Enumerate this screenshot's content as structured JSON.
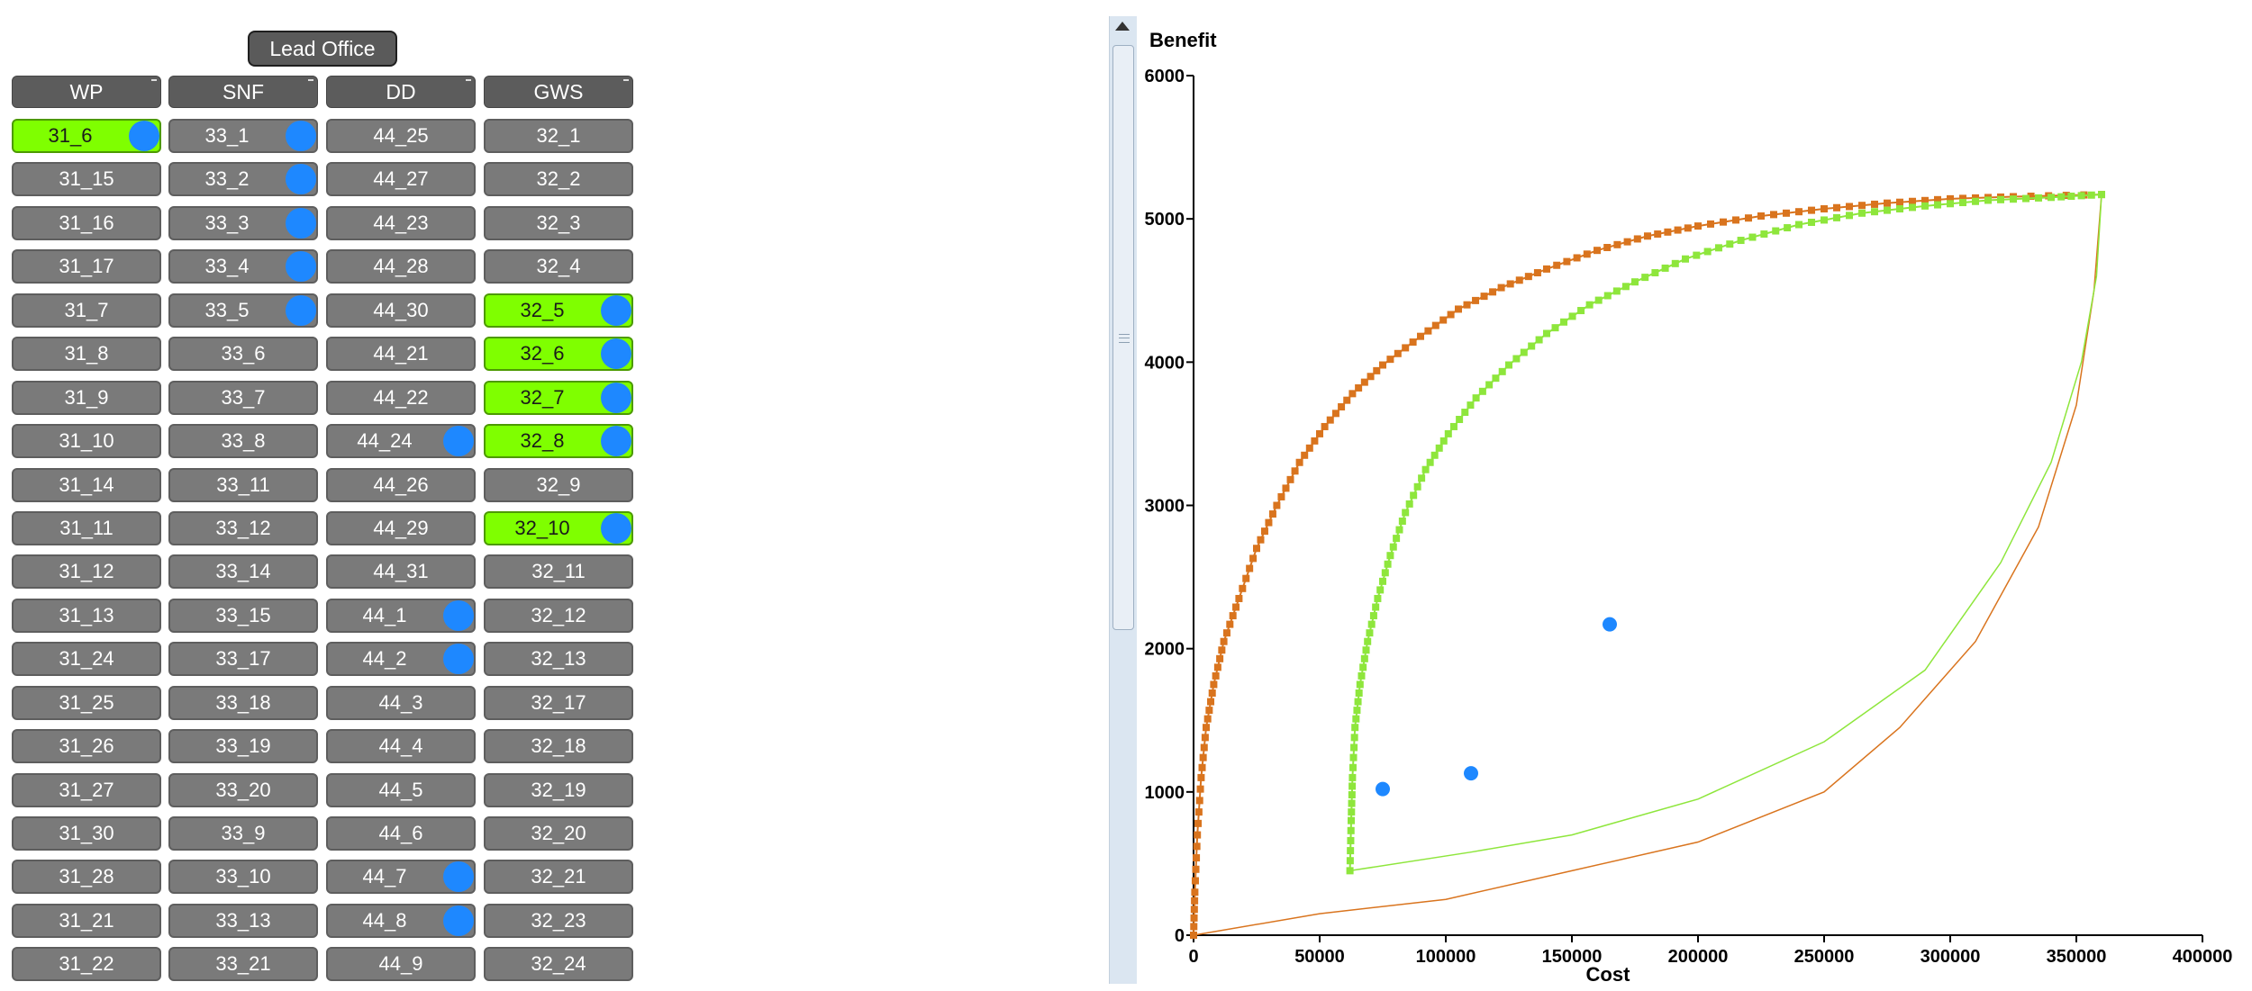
{
  "lead_office": {
    "label": "Lead Office"
  },
  "grid": {
    "columns": [
      {
        "header": "WP",
        "cells": [
          {
            "label": "31_6",
            "active": true,
            "marker": true
          },
          {
            "label": "31_15",
            "active": false,
            "marker": false
          },
          {
            "label": "31_16",
            "active": false,
            "marker": false
          },
          {
            "label": "31_17",
            "active": false,
            "marker": false
          },
          {
            "label": "31_7",
            "active": false,
            "marker": false
          },
          {
            "label": "31_8",
            "active": false,
            "marker": false
          },
          {
            "label": "31_9",
            "active": false,
            "marker": false
          },
          {
            "label": "31_10",
            "active": false,
            "marker": false
          },
          {
            "label": "31_14",
            "active": false,
            "marker": false
          },
          {
            "label": "31_11",
            "active": false,
            "marker": false
          },
          {
            "label": "31_12",
            "active": false,
            "marker": false
          },
          {
            "label": "31_13",
            "active": false,
            "marker": false
          },
          {
            "label": "31_24",
            "active": false,
            "marker": false
          },
          {
            "label": "31_25",
            "active": false,
            "marker": false
          },
          {
            "label": "31_26",
            "active": false,
            "marker": false
          },
          {
            "label": "31_27",
            "active": false,
            "marker": false
          },
          {
            "label": "31_30",
            "active": false,
            "marker": false
          },
          {
            "label": "31_28",
            "active": false,
            "marker": false
          },
          {
            "label": "31_21",
            "active": false,
            "marker": false
          },
          {
            "label": "31_22",
            "active": false,
            "marker": false
          }
        ]
      },
      {
        "header": "SNF",
        "cells": [
          {
            "label": "33_1",
            "active": false,
            "marker": true
          },
          {
            "label": "33_2",
            "active": false,
            "marker": true
          },
          {
            "label": "33_3",
            "active": false,
            "marker": true
          },
          {
            "label": "33_4",
            "active": false,
            "marker": true
          },
          {
            "label": "33_5",
            "active": false,
            "marker": true
          },
          {
            "label": "33_6",
            "active": false,
            "marker": false
          },
          {
            "label": "33_7",
            "active": false,
            "marker": false
          },
          {
            "label": "33_8",
            "active": false,
            "marker": false
          },
          {
            "label": "33_11",
            "active": false,
            "marker": false
          },
          {
            "label": "33_12",
            "active": false,
            "marker": false
          },
          {
            "label": "33_14",
            "active": false,
            "marker": false
          },
          {
            "label": "33_15",
            "active": false,
            "marker": false
          },
          {
            "label": "33_17",
            "active": false,
            "marker": false
          },
          {
            "label": "33_18",
            "active": false,
            "marker": false
          },
          {
            "label": "33_19",
            "active": false,
            "marker": false
          },
          {
            "label": "33_20",
            "active": false,
            "marker": false
          },
          {
            "label": "33_9",
            "active": false,
            "marker": false
          },
          {
            "label": "33_10",
            "active": false,
            "marker": false
          },
          {
            "label": "33_13",
            "active": false,
            "marker": false
          },
          {
            "label": "33_21",
            "active": false,
            "marker": false
          }
        ]
      },
      {
        "header": "DD",
        "cells": [
          {
            "label": "44_25",
            "active": false,
            "marker": false
          },
          {
            "label": "44_27",
            "active": false,
            "marker": false
          },
          {
            "label": "44_23",
            "active": false,
            "marker": false
          },
          {
            "label": "44_28",
            "active": false,
            "marker": false
          },
          {
            "label": "44_30",
            "active": false,
            "marker": false
          },
          {
            "label": "44_21",
            "active": false,
            "marker": false
          },
          {
            "label": "44_22",
            "active": false,
            "marker": false
          },
          {
            "label": "44_24",
            "active": false,
            "marker": true
          },
          {
            "label": "44_26",
            "active": false,
            "marker": false
          },
          {
            "label": "44_29",
            "active": false,
            "marker": false
          },
          {
            "label": "44_31",
            "active": false,
            "marker": false
          },
          {
            "label": "44_1",
            "active": false,
            "marker": true
          },
          {
            "label": "44_2",
            "active": false,
            "marker": true
          },
          {
            "label": "44_3",
            "active": false,
            "marker": false
          },
          {
            "label": "44_4",
            "active": false,
            "marker": false
          },
          {
            "label": "44_5",
            "active": false,
            "marker": false
          },
          {
            "label": "44_6",
            "active": false,
            "marker": false
          },
          {
            "label": "44_7",
            "active": false,
            "marker": true
          },
          {
            "label": "44_8",
            "active": false,
            "marker": true
          },
          {
            "label": "44_9",
            "active": false,
            "marker": false
          }
        ]
      },
      {
        "header": "GWS",
        "cells": [
          {
            "label": "32_1",
            "active": false,
            "marker": false
          },
          {
            "label": "32_2",
            "active": false,
            "marker": false
          },
          {
            "label": "32_3",
            "active": false,
            "marker": false
          },
          {
            "label": "32_4",
            "active": false,
            "marker": false
          },
          {
            "label": "32_5",
            "active": true,
            "marker": true
          },
          {
            "label": "32_6",
            "active": true,
            "marker": true
          },
          {
            "label": "32_7",
            "active": true,
            "marker": true
          },
          {
            "label": "32_8",
            "active": true,
            "marker": true
          },
          {
            "label": "32_9",
            "active": false,
            "marker": false
          },
          {
            "label": "32_10",
            "active": true,
            "marker": true
          },
          {
            "label": "32_11",
            "active": false,
            "marker": false
          },
          {
            "label": "32_12",
            "active": false,
            "marker": false
          },
          {
            "label": "32_13",
            "active": false,
            "marker": false
          },
          {
            "label": "32_17",
            "active": false,
            "marker": false
          },
          {
            "label": "32_18",
            "active": false,
            "marker": false
          },
          {
            "label": "32_19",
            "active": false,
            "marker": false
          },
          {
            "label": "32_20",
            "active": false,
            "marker": false
          },
          {
            "label": "32_21",
            "active": false,
            "marker": false
          },
          {
            "label": "32_23",
            "active": false,
            "marker": false
          },
          {
            "label": "32_24",
            "active": false,
            "marker": false
          }
        ]
      }
    ]
  },
  "colors": {
    "active_cell": "#7fff00",
    "inactive_cell": "#7a7a7a",
    "marker": "#1e88ff",
    "orange_series": "#d9741e",
    "green_series": "#8ee63c"
  },
  "chart_data": {
    "type": "scatter",
    "xlabel": "Cost",
    "ylabel": "Benefit",
    "xlim": [
      0,
      400000
    ],
    "ylim": [
      0,
      6000
    ],
    "xticks": [
      0,
      50000,
      100000,
      150000,
      200000,
      250000,
      300000,
      350000,
      400000
    ],
    "yticks": [
      0,
      1000,
      2000,
      3000,
      4000,
      5000,
      6000
    ],
    "grid": false,
    "series": [
      {
        "color": "#d9741e",
        "upper_frontier": [
          [
            0,
            0
          ],
          [
            500,
            300
          ],
          [
            1500,
            700
          ],
          [
            3000,
            1100
          ],
          [
            5000,
            1450
          ],
          [
            8000,
            1750
          ],
          [
            12000,
            2050
          ],
          [
            18000,
            2350
          ],
          [
            25000,
            2700
          ],
          [
            33000,
            3000
          ],
          [
            42000,
            3300
          ],
          [
            52000,
            3550
          ],
          [
            63000,
            3780
          ],
          [
            75000,
            3980
          ],
          [
            90000,
            4180
          ],
          [
            105000,
            4370
          ],
          [
            122000,
            4520
          ],
          [
            140000,
            4650
          ],
          [
            160000,
            4780
          ],
          [
            180000,
            4880
          ],
          [
            200000,
            4950
          ],
          [
            225000,
            5020
          ],
          [
            250000,
            5070
          ],
          [
            275000,
            5110
          ],
          [
            300000,
            5140
          ],
          [
            325000,
            5155
          ],
          [
            360000,
            5170
          ]
        ],
        "lower_frontier": [
          [
            0,
            0
          ],
          [
            50000,
            150
          ],
          [
            100000,
            250
          ],
          [
            150000,
            450
          ],
          [
            200000,
            650
          ],
          [
            250000,
            1000
          ],
          [
            280000,
            1450
          ],
          [
            310000,
            2050
          ],
          [
            335000,
            2850
          ],
          [
            350000,
            3700
          ],
          [
            357000,
            4500
          ],
          [
            360000,
            5170
          ]
        ]
      },
      {
        "color": "#8ee63c",
        "upper_frontier": [
          [
            62000,
            450
          ],
          [
            62500,
            800
          ],
          [
            63000,
            1100
          ],
          [
            64000,
            1450
          ],
          [
            66000,
            1750
          ],
          [
            69000,
            2050
          ],
          [
            73000,
            2350
          ],
          [
            78000,
            2650
          ],
          [
            84000,
            2950
          ],
          [
            92000,
            3250
          ],
          [
            101000,
            3500
          ],
          [
            112000,
            3750
          ],
          [
            125000,
            3980
          ],
          [
            140000,
            4200
          ],
          [
            157000,
            4400
          ],
          [
            175000,
            4560
          ],
          [
            195000,
            4720
          ],
          [
            217000,
            4850
          ],
          [
            240000,
            4960
          ],
          [
            265000,
            5040
          ],
          [
            290000,
            5090
          ],
          [
            315000,
            5130
          ],
          [
            340000,
            5150
          ],
          [
            360000,
            5170
          ]
        ],
        "lower_frontier": [
          [
            62000,
            450
          ],
          [
            110000,
            580
          ],
          [
            150000,
            700
          ],
          [
            200000,
            950
          ],
          [
            250000,
            1350
          ],
          [
            290000,
            1850
          ],
          [
            320000,
            2600
          ],
          [
            340000,
            3300
          ],
          [
            352000,
            4000
          ],
          [
            358000,
            4600
          ],
          [
            360000,
            5170
          ]
        ]
      },
      {
        "color": "#1e88ff",
        "points": [
          [
            75000,
            1020
          ],
          [
            110000,
            1130
          ],
          [
            165000,
            2170
          ]
        ]
      }
    ]
  }
}
